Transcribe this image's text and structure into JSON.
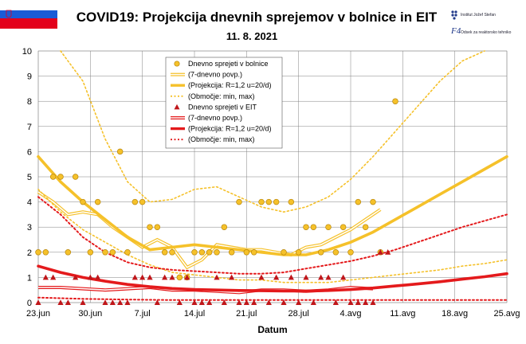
{
  "header": {
    "title": "COVID19: Projekcija dnevnih sprejemov v bolnice in EIT",
    "date": "11. 8. 2021",
    "logo_ijs": "Institut Jožef Stefan",
    "logo_f4": "Odsek za reaktorsko tehniko"
  },
  "colors": {
    "hosp": "#f5c12a",
    "hosp_marker_edge": "#b8860b",
    "eit": "#e41a1c",
    "eit_marker": "#c0161a",
    "grid": "#808080",
    "flag_white": "#ffffff",
    "flag_blue": "#1a5bd6",
    "flag_red": "#e3001b"
  },
  "chart_data": {
    "type": "line",
    "title": "COVID19: Projekcija dnevnih sprejemov v bolnice in EIT",
    "subtitle": "11. 8. 2021",
    "xlabel": "Datum",
    "ylabel": "",
    "ylim": [
      0,
      10
    ],
    "x_domain_days": [
      0,
      63
    ],
    "x_ticks": [
      {
        "day": 0,
        "label": "23.jun"
      },
      {
        "day": 7,
        "label": "30.jun"
      },
      {
        "day": 14,
        "label": "7.jul"
      },
      {
        "day": 21,
        "label": "14.jul"
      },
      {
        "day": 28,
        "label": "21.jul"
      },
      {
        "day": 35,
        "label": "28.jul"
      },
      {
        "day": 42,
        "label": "4.avg"
      },
      {
        "day": 49,
        "label": "11.avg"
      },
      {
        "day": 56,
        "label": "18.avg"
      },
      {
        "day": 63,
        "label": "25.avg"
      }
    ],
    "y_ticks": [
      0,
      1,
      2,
      3,
      4,
      5,
      6,
      7,
      8,
      9,
      10
    ],
    "grid": true,
    "legend_position": "top-center",
    "legend": [
      "Dnevno sprejeti v bolnice",
      "(7-dnevno povp.)",
      "(Projekcija: R=1,2 u=20/d)",
      "(Območje: min, max)",
      "Dnevno sprejeti v EIT",
      "(7-dnevno povp.)",
      "(Projekcija: R=1,2 u=20/d)",
      "(Območje: min, max)"
    ],
    "series": [
      {
        "name": "Dnevno sprejeti v bolnice",
        "style": "markers-circle",
        "x": [
          0,
          1,
          2,
          3,
          4,
          5,
          6,
          7,
          8,
          9,
          10,
          11,
          12,
          13,
          14,
          15,
          16,
          17,
          18,
          19,
          20,
          21,
          22,
          23,
          24,
          25,
          26,
          27,
          28,
          29,
          30,
          31,
          32,
          33,
          34,
          35,
          36,
          37,
          38,
          39,
          40,
          41,
          42,
          43,
          44,
          45,
          46
        ],
        "values": [
          2,
          2,
          5,
          5,
          2,
          5,
          4,
          2,
          4,
          2,
          2,
          6,
          2,
          4,
          4,
          3,
          3,
          2,
          2,
          1,
          1,
          2,
          2,
          2,
          2,
          3,
          2,
          4,
          2,
          2,
          4,
          4,
          4,
          2,
          4,
          2,
          3,
          3,
          2,
          3,
          2,
          3,
          2,
          4,
          3,
          4,
          2
        ]
      },
      {
        "name": "(7-dnevno povp.)",
        "style": "double-line",
        "x": [
          0,
          2,
          4,
          6,
          8,
          10,
          12,
          14,
          16,
          18,
          20,
          22,
          24,
          26,
          28,
          30,
          32,
          34,
          36,
          38,
          40,
          42,
          44,
          46
        ],
        "values": [
          4.4,
          4.0,
          3.5,
          3.6,
          3.5,
          3.0,
          2.6,
          2.2,
          2.5,
          2.2,
          1.4,
          1.7,
          2.3,
          2.2,
          2.1,
          2.1,
          2.0,
          1.9,
          2.2,
          2.3,
          2.6,
          2.9,
          3.3,
          3.7
        ]
      },
      {
        "name": "(Projekcija: R=1,2 u=20/d)",
        "style": "thick-line",
        "x": [
          0,
          3,
          6,
          9,
          12,
          15,
          18,
          21,
          24,
          27,
          30,
          33,
          36,
          39,
          42,
          45,
          48,
          51,
          54,
          57,
          60,
          63
        ],
        "values": [
          5.8,
          4.8,
          4.0,
          3.3,
          2.6,
          2.1,
          2.2,
          2.3,
          2.2,
          2.1,
          2.0,
          1.9,
          1.9,
          2.1,
          2.4,
          2.8,
          3.3,
          3.8,
          4.3,
          4.8,
          5.3,
          5.8
        ]
      },
      {
        "name": "(Območje: min, max)",
        "style": "dotted-line",
        "x": [
          3,
          6,
          9,
          12,
          15,
          18,
          21,
          24,
          27,
          30,
          33,
          36,
          39,
          42,
          45,
          48,
          51,
          54,
          57,
          60
        ],
        "values": [
          10,
          8.8,
          6.5,
          4.8,
          4.0,
          4.1,
          4.5,
          4.6,
          4.2,
          3.8,
          3.6,
          3.8,
          4.2,
          4.9,
          5.8,
          6.8,
          7.8,
          8.8,
          9.6,
          10
        ]
      },
      {
        "name": "(Območje: min, max)",
        "style": "dotted-line",
        "x": [
          0,
          3,
          6,
          9,
          12,
          15,
          18,
          21,
          24,
          27,
          30,
          33,
          36,
          39,
          42,
          45,
          48,
          51,
          54,
          57,
          60,
          63
        ],
        "values": [
          4.5,
          3.6,
          2.9,
          2.4,
          1.9,
          1.5,
          1.2,
          1.1,
          1.0,
          0.9,
          0.9,
          0.8,
          0.8,
          0.8,
          0.9,
          1.0,
          1.1,
          1.2,
          1.3,
          1.45,
          1.55,
          1.7
        ]
      },
      {
        "name": "Dnevno sprejeti v EIT",
        "style": "markers-triangle",
        "x": [
          0,
          1,
          2,
          3,
          4,
          5,
          6,
          7,
          8,
          9,
          10,
          11,
          12,
          13,
          14,
          15,
          16,
          17,
          18,
          19,
          20,
          21,
          22,
          23,
          24,
          25,
          26,
          27,
          28,
          29,
          30,
          31,
          32,
          33,
          34,
          35,
          36,
          37,
          38,
          39,
          40,
          41,
          42,
          43,
          44,
          45,
          46
        ],
        "values": [
          0,
          1,
          1,
          0,
          0,
          1,
          0,
          1,
          1,
          0,
          0,
          0,
          0,
          1,
          1,
          1,
          0,
          1,
          1,
          0,
          1,
          0,
          0,
          0,
          1,
          0,
          1,
          0,
          0,
          0,
          1,
          0,
          1,
          0,
          1,
          0,
          1,
          0,
          1,
          1,
          0,
          1,
          0,
          0,
          0,
          0,
          2
        ]
      },
      {
        "name": "(7-dnevno povp.)",
        "style": "double-line",
        "x": [
          0,
          3,
          6,
          9,
          12,
          15,
          18,
          21,
          24,
          27,
          30,
          33,
          36,
          39,
          42,
          45
        ],
        "values": [
          0.6,
          0.6,
          0.55,
          0.5,
          0.55,
          0.6,
          0.5,
          0.5,
          0.45,
          0.4,
          0.5,
          0.5,
          0.45,
          0.5,
          0.6,
          0.55
        ]
      },
      {
        "name": "(Projekcija: R=1,2 u=20/d)",
        "style": "thick-line",
        "x": [
          0,
          3,
          6,
          9,
          12,
          15,
          18,
          21,
          24,
          27,
          30,
          33,
          36,
          39,
          42,
          45,
          48,
          51,
          54,
          57,
          60,
          63
        ],
        "values": [
          1.45,
          1.2,
          1.0,
          0.85,
          0.72,
          0.63,
          0.56,
          0.52,
          0.5,
          0.48,
          0.47,
          0.46,
          0.46,
          0.48,
          0.52,
          0.58,
          0.66,
          0.74,
          0.83,
          0.93,
          1.03,
          1.15
        ]
      },
      {
        "name": "(Območje: min, max)",
        "style": "dotted-line",
        "x": [
          0,
          3,
          6,
          9,
          12,
          15,
          18,
          21,
          24,
          27,
          30,
          33,
          36,
          39,
          42,
          45,
          48,
          51,
          54,
          57,
          60,
          63
        ],
        "values": [
          4.2,
          3.5,
          2.6,
          2.0,
          1.6,
          1.4,
          1.3,
          1.25,
          1.2,
          1.15,
          1.15,
          1.2,
          1.35,
          1.5,
          1.65,
          1.85,
          2.1,
          2.4,
          2.7,
          3.0,
          3.25,
          3.5
        ]
      },
      {
        "name": "(Območje: min, max)",
        "style": "dotted-line",
        "x": [
          0,
          6,
          12,
          18,
          24,
          30,
          36,
          42,
          48,
          54,
          60,
          63
        ],
        "values": [
          0.2,
          0.15,
          0.12,
          0.1,
          0.1,
          0.1,
          0.1,
          0.1,
          0.1,
          0.1,
          0.1,
          0.1
        ]
      }
    ],
    "extra_points": {
      "hosp_outlier": {
        "x": 48,
        "value": 8
      },
      "eit_outlier": {
        "x": 47,
        "value": 2
      }
    }
  }
}
